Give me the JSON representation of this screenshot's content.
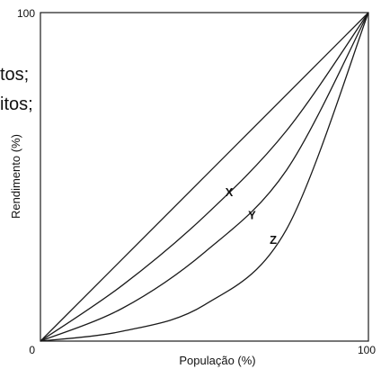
{
  "background_text": [
    "tos;",
    "itos;"
  ],
  "chart_data": {
    "type": "line",
    "title": "",
    "xlabel": "População (%)",
    "ylabel": "Rendimento (%)",
    "xlim": [
      0,
      100
    ],
    "ylim": [
      0,
      100
    ],
    "x_ticks": [
      "0",
      "100"
    ],
    "y_ticks": [
      "100"
    ],
    "grid": false,
    "line_color": "#1a1a1a",
    "series": [
      {
        "x": [
          0,
          100
        ],
        "y": [
          0,
          100
        ]
      },
      {
        "name": "X",
        "x": [
          0,
          25,
          50,
          75,
          100
        ],
        "y": [
          0,
          17,
          38,
          64,
          100
        ]
      },
      {
        "name": "Y",
        "x": [
          0,
          25,
          50,
          75,
          100
        ],
        "y": [
          0,
          10,
          27,
          52,
          100
        ]
      },
      {
        "name": "Z",
        "x": [
          0,
          25,
          50,
          75,
          100
        ],
        "y": [
          0,
          3,
          11,
          34,
          100
        ]
      }
    ],
    "annotations": [
      {
        "text": "X",
        "x": 57.5,
        "y": 45.5
      },
      {
        "text": "Y",
        "x": 64.5,
        "y": 38.5
      },
      {
        "text": "Z",
        "x": 71,
        "y": 31
      }
    ]
  }
}
